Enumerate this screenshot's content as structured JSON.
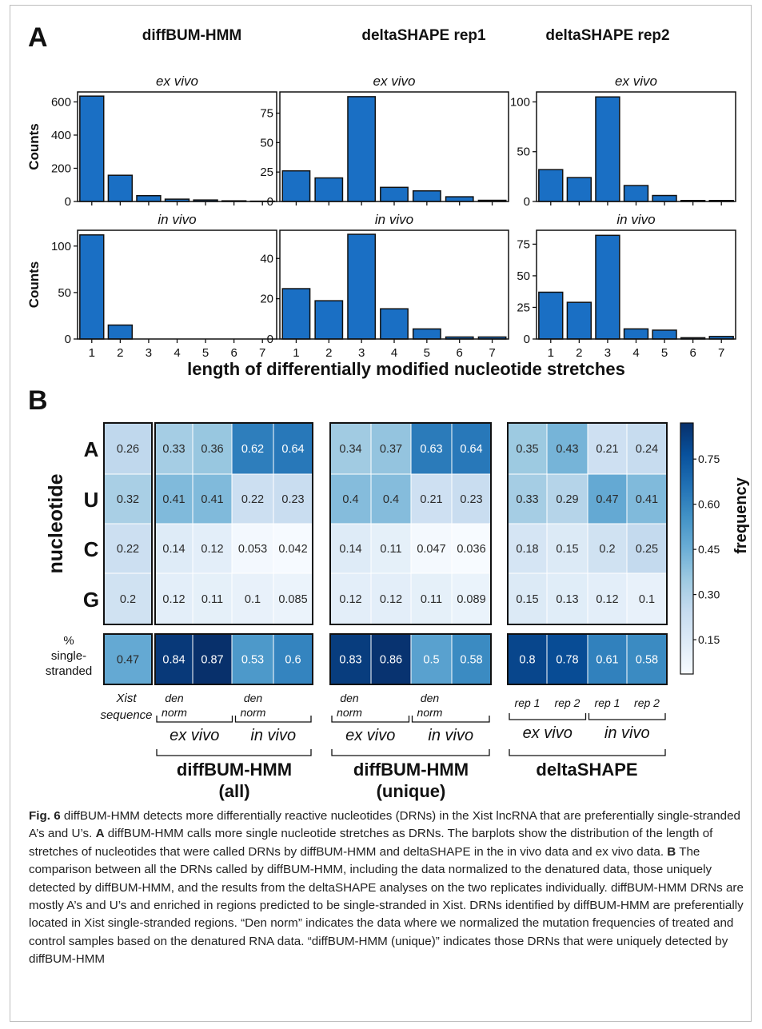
{
  "panel_a": {
    "letter": "A",
    "xaxis_label": "length of differentially modified nucleotide stretches",
    "yaxis_label": "Counts",
    "column_titles": [
      "diffBUM-HMM",
      "deltaSHAPE rep1",
      "deltaSHAPE rep2"
    ],
    "row_subtitles": [
      "ex vivo",
      "in vivo"
    ]
  },
  "panel_b": {
    "letter": "B",
    "ylabel": "nucleotide",
    "colorbar_label": "frequency",
    "ss_label": [
      "%",
      "single-",
      "stranded"
    ],
    "xist_label": [
      "Xist",
      "sequence"
    ],
    "group_titles": [
      [
        "diffBUM-HMM",
        "(all)"
      ],
      [
        "diffBUM-HMM",
        "(unique)"
      ],
      [
        "deltaSHAPE"
      ]
    ],
    "condition_labels": [
      "ex vivo",
      "in vivo"
    ],
    "sub_labels_den": [
      [
        "den",
        "norm"
      ],
      [
        "den",
        "norm"
      ]
    ],
    "sub_labels_rep": [
      "rep 1",
      "rep 2",
      "rep 1",
      "rep 2"
    ]
  },
  "chart_data": [
    {
      "type": "bar",
      "title": "diffBUM-HMM",
      "subtitle": "ex vivo",
      "ylabel": "Counts",
      "xlabel": "",
      "categories": [
        "1",
        "2",
        "3",
        "4",
        "5",
        "6",
        "7"
      ],
      "values": [
        635,
        158,
        35,
        14,
        9,
        4,
        2
      ],
      "ylim": [
        0,
        660
      ],
      "yticks": [
        0,
        200,
        400,
        600
      ]
    },
    {
      "type": "bar",
      "title": "deltaSHAPE rep1",
      "subtitle": "ex vivo",
      "ylabel": "",
      "xlabel": "",
      "categories": [
        "1",
        "2",
        "3",
        "4",
        "5",
        "6",
        "7"
      ],
      "values": [
        26,
        20,
        89,
        12,
        9,
        4,
        1
      ],
      "ylim": [
        0,
        93
      ],
      "yticks": [
        0,
        25,
        50,
        75
      ]
    },
    {
      "type": "bar",
      "title": "deltaSHAPE rep2",
      "subtitle": "ex vivo",
      "ylabel": "",
      "xlabel": "",
      "categories": [
        "1",
        "2",
        "3",
        "4",
        "5",
        "6",
        "7"
      ],
      "values": [
        32,
        24,
        105,
        16,
        6,
        1,
        1
      ],
      "ylim": [
        0,
        110
      ],
      "yticks": [
        0,
        50,
        100
      ]
    },
    {
      "type": "bar",
      "title": "",
      "subtitle": "in vivo",
      "ylabel": "Counts",
      "xlabel": "",
      "categories": [
        "1",
        "2",
        "3",
        "4",
        "5",
        "6",
        "7"
      ],
      "values": [
        112,
        15,
        0,
        0,
        0,
        0,
        0
      ],
      "ylim": [
        0,
        117
      ],
      "yticks": [
        0,
        50,
        100
      ]
    },
    {
      "type": "bar",
      "title": "",
      "subtitle": "in vivo",
      "ylabel": "",
      "xlabel": "length of differentially modified nucleotide stretches",
      "categories": [
        "1",
        "2",
        "3",
        "4",
        "5",
        "6",
        "7"
      ],
      "values": [
        25,
        19,
        52,
        15,
        5,
        1,
        1
      ],
      "ylim": [
        0,
        54
      ],
      "yticks": [
        0,
        20,
        40
      ]
    },
    {
      "type": "bar",
      "title": "",
      "subtitle": "in vivo",
      "ylabel": "",
      "xlabel": "",
      "categories": [
        "1",
        "2",
        "3",
        "4",
        "5",
        "6",
        "7"
      ],
      "values": [
        37,
        29,
        82,
        8,
        7,
        1,
        2
      ],
      "ylim": [
        0,
        86
      ],
      "yticks": [
        0,
        25,
        50,
        75
      ]
    },
    {
      "type": "heatmap",
      "title": "",
      "xlabel": "",
      "ylabel": "nucleotide",
      "rows": [
        "A",
        "U",
        "C",
        "G",
        "% single-stranded"
      ],
      "groups": [
        {
          "name": "Xist sequence",
          "columns": [
            "Xist sequence"
          ],
          "values": [
            [
              0.26
            ],
            [
              0.32
            ],
            [
              0.22
            ],
            [
              0.2
            ],
            [
              0.47
            ]
          ]
        },
        {
          "name": "diffBUM-HMM (all)",
          "columns": [
            "ex vivo den",
            "ex vivo norm",
            "in vivo den",
            "in vivo norm"
          ],
          "values": [
            [
              0.33,
              0.36,
              0.62,
              0.64
            ],
            [
              0.41,
              0.41,
              0.22,
              0.23
            ],
            [
              0.14,
              0.12,
              0.053,
              0.042
            ],
            [
              0.12,
              0.11,
              0.1,
              0.085
            ],
            [
              0.84,
              0.87,
              0.53,
              0.6
            ]
          ]
        },
        {
          "name": "diffBUM-HMM (unique)",
          "columns": [
            "ex vivo den",
            "ex vivo norm",
            "in vivo den",
            "in vivo norm"
          ],
          "values": [
            [
              0.34,
              0.37,
              0.63,
              0.64
            ],
            [
              0.4,
              0.4,
              0.21,
              0.23
            ],
            [
              0.14,
              0.11,
              0.047,
              0.036
            ],
            [
              0.12,
              0.12,
              0.11,
              0.089
            ],
            [
              0.83,
              0.86,
              0.5,
              0.58
            ]
          ]
        },
        {
          "name": "deltaSHAPE",
          "columns": [
            "ex vivo rep 1",
            "ex vivo rep 2",
            "in vivo rep 1",
            "in vivo rep 2"
          ],
          "values": [
            [
              0.35,
              0.43,
              0.21,
              0.24
            ],
            [
              0.33,
              0.29,
              0.47,
              0.41
            ],
            [
              0.18,
              0.15,
              0.2,
              0.25
            ],
            [
              0.15,
              0.13,
              0.12,
              0.1
            ],
            [
              0.8,
              0.78,
              0.61,
              0.58
            ]
          ]
        }
      ],
      "colorbar": {
        "label": "frequency",
        "ticks": [
          "0.15",
          "0.30",
          "0.45",
          "0.60",
          "0.75"
        ],
        "range": [
          0.036,
          0.87
        ]
      }
    }
  ],
  "caption": {
    "fig_label": "Fig. 6",
    "text_1": " diffBUM-HMM detects more differentially reactive nucleotides (DRNs) in the Xist lncRNA that are preferentially single-stranded A’s and U’s. ",
    "a_label": "A",
    "text_2": " diffBUM-HMM calls more single nucleotide stretches as DRNs. The barplots show the distribution of the length of stretches of nucleotides that were called DRNs by diffBUM-HMM and deltaSHAPE in the in vivo data and ex vivo data. ",
    "b_label": "B",
    "text_3": " The comparison between all the DRNs called by diffBUM-HMM, including the data normalized to the denatured data, those uniquely detected by diffBUM-HMM, and the results from the deltaSHAPE analyses on the two replicates individually. diffBUM-HMM DRNs are mostly A’s and U’s and enriched in regions predicted to be single-stranded in Xist. DRNs identified by diffBUM-HMM are preferentially located in Xist single-stranded regions. “Den norm” indicates the data where we normalized the mutation frequencies of treated and control samples based on the denatured RNA data. “diffBUM-HMM (unique)” indicates those DRNs that were uniquely detected by diffBUM-HMM"
  },
  "colors": {
    "bar": "#1a6fc4",
    "heat_low": "#f7fbff",
    "heat_high": "#08306b"
  }
}
